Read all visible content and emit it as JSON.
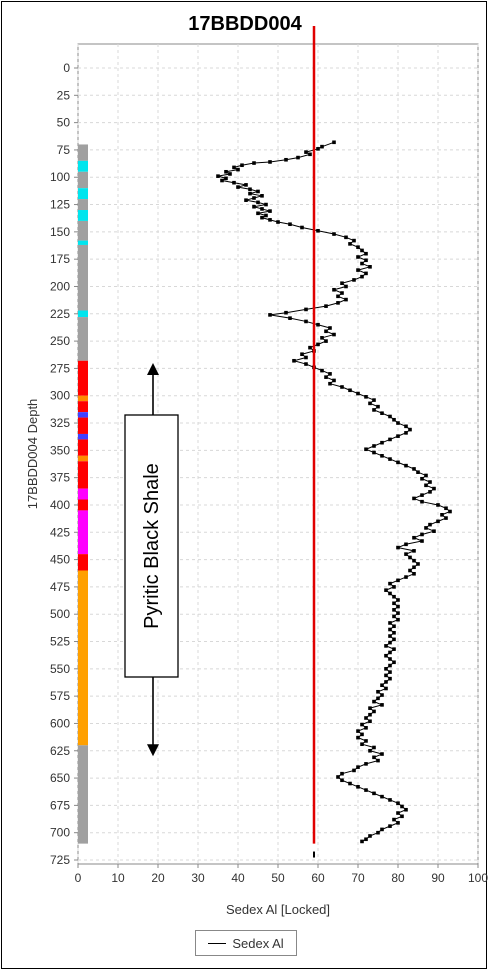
{
  "chart_data": {
    "type": "scatter",
    "title": "17BBDD004",
    "xlabel": "Sedex Al [Locked]",
    "ylabel": "17BBDD004 Depth",
    "xlim": [
      0,
      100
    ],
    "ylim": [
      0,
      725
    ],
    "y_inverted": true,
    "x_ticks": [
      0,
      10,
      20,
      30,
      40,
      50,
      60,
      70,
      80,
      90,
      100
    ],
    "y_ticks": [
      0,
      25,
      50,
      75,
      100,
      125,
      150,
      175,
      200,
      225,
      250,
      275,
      300,
      325,
      350,
      375,
      400,
      425,
      450,
      475,
      500,
      525,
      550,
      575,
      600,
      625,
      650,
      675,
      700,
      725
    ],
    "grid": true,
    "legend_position": "bottom",
    "series": [
      {
        "name": "Sedex Al",
        "color": "#000000",
        "marker": "square",
        "points": [
          [
            64,
            68
          ],
          [
            61,
            72
          ],
          [
            60,
            74
          ],
          [
            57,
            77
          ],
          [
            58,
            79
          ],
          [
            55,
            82
          ],
          [
            52,
            84
          ],
          [
            48,
            86
          ],
          [
            44,
            87
          ],
          [
            41,
            89
          ],
          [
            39,
            91
          ],
          [
            40,
            93
          ],
          [
            37,
            95
          ],
          [
            38,
            97
          ],
          [
            35,
            99
          ],
          [
            37,
            101
          ],
          [
            36,
            103
          ],
          [
            39,
            105
          ],
          [
            42,
            107
          ],
          [
            40,
            109
          ],
          [
            43,
            111
          ],
          [
            45,
            113
          ],
          [
            43,
            115
          ],
          [
            46,
            117
          ],
          [
            44,
            119
          ],
          [
            42,
            121
          ],
          [
            45,
            123
          ],
          [
            47,
            125
          ],
          [
            44,
            127
          ],
          [
            46,
            129
          ],
          [
            48,
            131
          ],
          [
            45,
            133
          ],
          [
            47,
            135
          ],
          [
            46,
            137
          ],
          [
            48,
            139
          ],
          [
            50,
            141
          ],
          [
            53,
            143
          ],
          [
            56,
            146
          ],
          [
            60,
            149
          ],
          [
            64,
            152
          ],
          [
            67,
            155
          ],
          [
            69,
            158
          ],
          [
            68,
            161
          ],
          [
            70,
            164
          ],
          [
            71,
            167
          ],
          [
            72,
            170
          ],
          [
            70,
            173
          ],
          [
            72,
            176
          ],
          [
            71,
            179
          ],
          [
            73,
            182
          ],
          [
            70,
            185
          ],
          [
            72,
            188
          ],
          [
            71,
            191
          ],
          [
            69,
            194
          ],
          [
            66,
            197
          ],
          [
            67,
            200
          ],
          [
            64,
            203
          ],
          [
            66,
            206
          ],
          [
            65,
            209
          ],
          [
            67,
            212
          ],
          [
            65,
            215
          ],
          [
            62,
            218
          ],
          [
            57,
            221
          ],
          [
            52,
            224
          ],
          [
            48,
            226
          ],
          [
            53,
            229
          ],
          [
            57,
            232
          ],
          [
            60,
            235
          ],
          [
            63,
            238
          ],
          [
            62,
            241
          ],
          [
            64,
            244
          ],
          [
            61,
            247
          ],
          [
            62,
            250
          ],
          [
            60,
            253
          ],
          [
            58,
            256
          ],
          [
            59,
            259
          ],
          [
            56,
            262
          ],
          [
            57,
            265
          ],
          [
            54,
            268
          ],
          [
            57,
            271
          ],
          [
            59,
            274
          ],
          [
            61,
            277
          ],
          [
            63,
            280
          ],
          [
            62,
            283
          ],
          [
            64,
            286
          ],
          [
            63,
            289
          ],
          [
            66,
            292
          ],
          [
            68,
            295
          ],
          [
            70,
            298
          ],
          [
            72,
            301
          ],
          [
            74,
            304
          ],
          [
            73,
            307
          ],
          [
            75,
            310
          ],
          [
            74,
            313
          ],
          [
            76,
            316
          ],
          [
            78,
            319
          ],
          [
            79,
            322
          ],
          [
            80,
            325
          ],
          [
            82,
            328
          ],
          [
            83,
            331
          ],
          [
            82,
            334
          ],
          [
            80,
            337
          ],
          [
            78,
            340
          ],
          [
            76,
            343
          ],
          [
            74,
            346
          ],
          [
            72,
            349
          ],
          [
            74,
            352
          ],
          [
            76,
            355
          ],
          [
            78,
            358
          ],
          [
            80,
            361
          ],
          [
            82,
            364
          ],
          [
            84,
            367
          ],
          [
            85,
            370
          ],
          [
            87,
            373
          ],
          [
            86,
            376
          ],
          [
            88,
            379
          ],
          [
            87,
            382
          ],
          [
            89,
            385
          ],
          [
            88,
            388
          ],
          [
            86,
            391
          ],
          [
            84,
            394
          ],
          [
            86,
            397
          ],
          [
            90,
            400
          ],
          [
            92,
            403
          ],
          [
            93,
            406
          ],
          [
            91,
            409
          ],
          [
            92,
            412
          ],
          [
            90,
            415
          ],
          [
            88,
            418
          ],
          [
            87,
            421
          ],
          [
            89,
            424
          ],
          [
            86,
            427
          ],
          [
            84,
            430
          ],
          [
            86,
            433
          ],
          [
            82,
            436
          ],
          [
            80,
            439
          ],
          [
            84,
            442
          ],
          [
            82,
            445
          ],
          [
            83,
            448
          ],
          [
            84,
            451
          ],
          [
            85,
            454
          ],
          [
            84,
            457
          ],
          [
            83,
            460
          ],
          [
            84,
            463
          ],
          [
            82,
            466
          ],
          [
            80,
            469
          ],
          [
            78,
            472
          ],
          [
            79,
            475
          ],
          [
            77,
            478
          ],
          [
            78,
            481
          ],
          [
            79,
            484
          ],
          [
            80,
            487
          ],
          [
            79,
            490
          ],
          [
            80,
            493
          ],
          [
            79,
            496
          ],
          [
            80,
            499
          ],
          [
            79,
            502
          ],
          [
            80,
            505
          ],
          [
            78,
            508
          ],
          [
            79,
            511
          ],
          [
            78,
            514
          ],
          [
            79,
            517
          ],
          [
            78,
            520
          ],
          [
            79,
            523
          ],
          [
            78,
            526
          ],
          [
            77,
            529
          ],
          [
            79,
            532
          ],
          [
            78,
            535
          ],
          [
            77,
            538
          ],
          [
            78,
            541
          ],
          [
            79,
            544
          ],
          [
            78,
            547
          ],
          [
            77,
            550
          ],
          [
            78,
            553
          ],
          [
            77,
            556
          ],
          [
            78,
            559
          ],
          [
            77,
            562
          ],
          [
            76,
            565
          ],
          [
            77,
            568
          ],
          [
            75,
            571
          ],
          [
            76,
            574
          ],
          [
            75,
            577
          ],
          [
            74,
            580
          ],
          [
            76,
            583
          ],
          [
            73,
            586
          ],
          [
            74,
            589
          ],
          [
            73,
            592
          ],
          [
            72,
            595
          ],
          [
            73,
            598
          ],
          [
            71,
            601
          ],
          [
            72,
            604
          ],
          [
            70,
            607
          ],
          [
            71,
            610
          ],
          [
            70,
            613
          ],
          [
            72,
            616
          ],
          [
            71,
            619
          ],
          [
            74,
            622
          ],
          [
            73,
            625
          ],
          [
            76,
            628
          ],
          [
            74,
            631
          ],
          [
            75,
            634
          ],
          [
            72,
            637
          ],
          [
            70,
            640
          ],
          [
            69,
            643
          ],
          [
            66,
            646
          ],
          [
            65,
            649
          ],
          [
            66,
            652
          ],
          [
            68,
            655
          ],
          [
            70,
            658
          ],
          [
            72,
            661
          ],
          [
            74,
            664
          ],
          [
            76,
            667
          ],
          [
            78,
            670
          ],
          [
            80,
            673
          ],
          [
            81,
            676
          ],
          [
            82,
            679
          ],
          [
            80,
            682
          ],
          [
            81,
            685
          ],
          [
            79,
            688
          ],
          [
            80,
            691
          ],
          [
            78,
            694
          ],
          [
            76,
            697
          ],
          [
            75,
            700
          ],
          [
            73,
            703
          ],
          [
            72,
            706
          ],
          [
            71,
            708
          ]
        ]
      },
      {
        "name": "",
        "color": "#e00000",
        "type": "vline",
        "x": 59
      }
    ],
    "lithology_column": {
      "x_range": [
        0,
        2
      ],
      "intervals": [
        {
          "from": 70,
          "to": 85,
          "color": "#a0a0a0"
        },
        {
          "from": 85,
          "to": 95,
          "color": "#00e5ee"
        },
        {
          "from": 95,
          "to": 110,
          "color": "#a0a0a0"
        },
        {
          "from": 110,
          "to": 120,
          "color": "#00e5ee"
        },
        {
          "from": 120,
          "to": 130,
          "color": "#a0a0a0"
        },
        {
          "from": 130,
          "to": 140,
          "color": "#00e5ee"
        },
        {
          "from": 140,
          "to": 158,
          "color": "#a0a0a0"
        },
        {
          "from": 158,
          "to": 162,
          "color": "#00e5ee"
        },
        {
          "from": 162,
          "to": 222,
          "color": "#a0a0a0"
        },
        {
          "from": 222,
          "to": 228,
          "color": "#00e5ee"
        },
        {
          "from": 228,
          "to": 268,
          "color": "#a0a0a0"
        },
        {
          "from": 268,
          "to": 300,
          "color": "#ff0000"
        },
        {
          "from": 300,
          "to": 305,
          "color": "#ff8c00"
        },
        {
          "from": 305,
          "to": 315,
          "color": "#ff0000"
        },
        {
          "from": 315,
          "to": 320,
          "color": "#4040ff"
        },
        {
          "from": 320,
          "to": 335,
          "color": "#ff0000"
        },
        {
          "from": 335,
          "to": 340,
          "color": "#4040ff"
        },
        {
          "from": 340,
          "to": 355,
          "color": "#ff0000"
        },
        {
          "from": 355,
          "to": 360,
          "color": "#ff8c00"
        },
        {
          "from": 360,
          "to": 385,
          "color": "#ff0000"
        },
        {
          "from": 385,
          "to": 395,
          "color": "#ff00ff"
        },
        {
          "from": 395,
          "to": 405,
          "color": "#ff0000"
        },
        {
          "from": 405,
          "to": 445,
          "color": "#ff00ff"
        },
        {
          "from": 445,
          "to": 460,
          "color": "#ff0000"
        },
        {
          "from": 460,
          "to": 620,
          "color": "#ffa000"
        },
        {
          "from": 620,
          "to": 710,
          "color": "#a0a0a0"
        }
      ]
    },
    "annotation": {
      "text": "Pyritic Black Shale",
      "arrow_from_depth": 270,
      "arrow_to_depth": 630
    }
  }
}
